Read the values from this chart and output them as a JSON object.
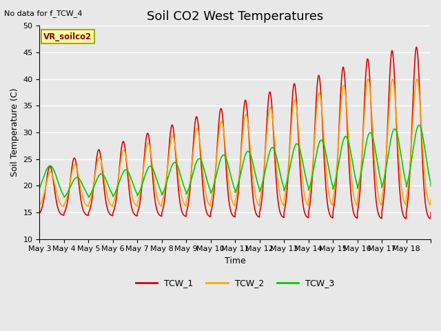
{
  "title": "Soil CO2 West Temperatures",
  "xlabel": "Time",
  "ylabel": "Soil Temperature (C)",
  "annotation_text": "No data for f_TCW_4",
  "legend_box_text": "VR_soilco2",
  "ylim": [
    10,
    50
  ],
  "background_color": "#e8e8e8",
  "plot_bg_color": "#e8e8e8",
  "grid_color": "white",
  "series": {
    "TCW_1": {
      "color": "#dd0000",
      "linewidth": 1.2
    },
    "TCW_2": {
      "color": "#ffa500",
      "linewidth": 1.2
    },
    "TCW_3": {
      "color": "#00cc00",
      "linewidth": 1.2
    }
  },
  "tick_labels": [
    "May 3",
    "May 4",
    "May 5",
    "May 6",
    "May 7",
    "May 8",
    "May 9",
    "May 10",
    "May 11",
    "May 12",
    "May 13",
    "May 14",
    "May 15",
    "May 16",
    "May 17",
    "May 18"
  ],
  "yticks": [
    10,
    15,
    20,
    25,
    30,
    35,
    40,
    45,
    50
  ],
  "title_fontsize": 13,
  "axis_fontsize": 9,
  "tick_fontsize": 8,
  "figsize": [
    6.4,
    4.8
  ],
  "dpi": 100
}
